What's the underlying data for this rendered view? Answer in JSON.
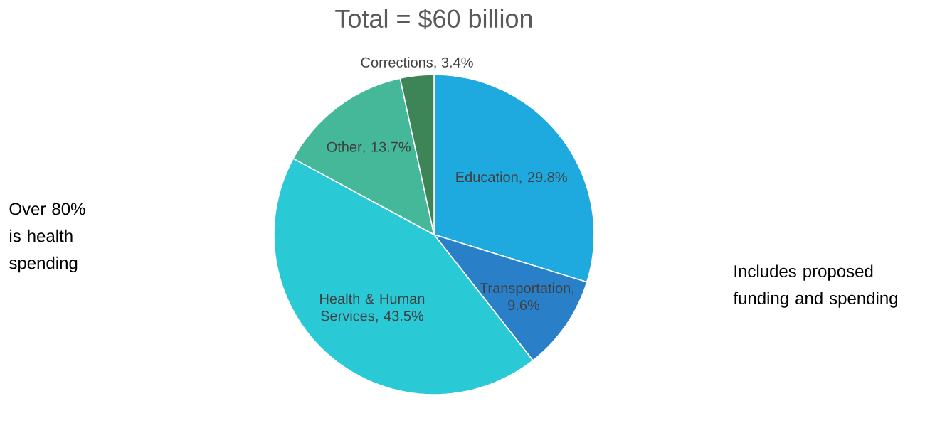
{
  "chart_data": {
    "type": "pie",
    "title": "Total = $60 billion",
    "categories": [
      "Education",
      "Transportation",
      "Health & Human Services",
      "Other",
      "Corrections"
    ],
    "values": [
      29.8,
      9.6,
      43.5,
      13.7,
      3.4
    ],
    "value_labels": [
      ", 29.8%",
      ", 9.6%",
      ", 43.5%",
      ", 13.7%",
      ", 3.4%"
    ],
    "colors": [
      "#1eaadf",
      "#2a80c8",
      "#29c9d6",
      "#45b89a",
      "#3d8557"
    ],
    "annotations": [
      "Over 80% is health spending",
      "Includes proposed funding and spending"
    ]
  }
}
